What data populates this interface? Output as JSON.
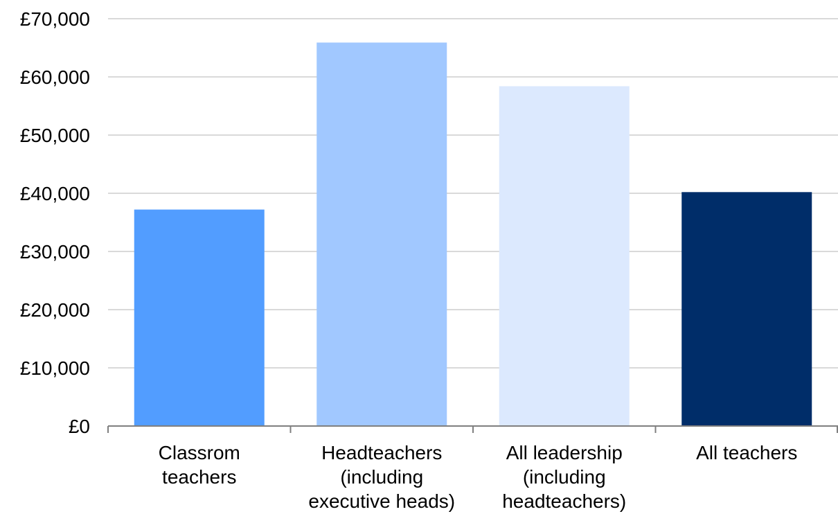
{
  "chart_data": {
    "type": "bar",
    "title": "",
    "xlabel": "",
    "ylabel": "",
    "categories": [
      [
        "Classrom",
        "teachers"
      ],
      [
        "Headteachers",
        "(including",
        "executive heads)"
      ],
      [
        "All leadership",
        "(including",
        "headteachers)"
      ],
      [
        "All teachers"
      ]
    ],
    "values": [
      37200,
      65900,
      58400,
      40200
    ],
    "colors": [
      "#529dff",
      "#a1c8ff",
      "#dce9fe",
      "#002d69"
    ],
    "ylim": [
      0,
      70000
    ],
    "yticks": [
      0,
      10000,
      20000,
      30000,
      40000,
      50000,
      60000,
      70000
    ],
    "ytick_labels": [
      "£0",
      "£10,000",
      "£20,000",
      "£30,000",
      "£40,000",
      "£50,000",
      "£60,000",
      "£70,000"
    ],
    "grid": true,
    "legend": "none"
  }
}
